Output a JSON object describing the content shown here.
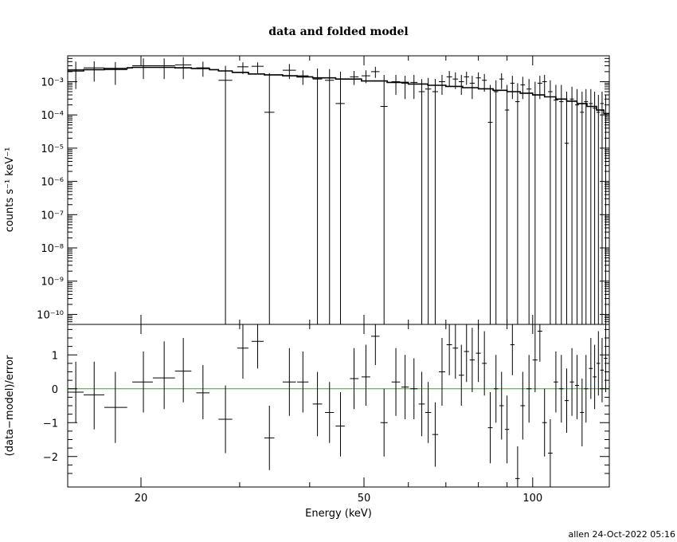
{
  "chart_data": {
    "type": "scatter",
    "title": "data and folded model",
    "footer": "allen 24-Oct-2022 05:16",
    "xlabel": "Energy (keV)",
    "xscale": "log",
    "xlim": [
      14.8,
      137
    ],
    "x_ticks": [
      "20",
      "50",
      "100"
    ],
    "colors": {
      "data": "#000000",
      "model": "#000000",
      "zero_line": "#00cc00"
    },
    "panels": [
      {
        "id": "spectrum",
        "ylabel": "counts s⁻¹ keV⁻¹",
        "yscale": "log",
        "ylim": [
          5e-11,
          0.006
        ],
        "y_ticks": [
          "10⁻¹⁰",
          "10⁻⁹",
          "10⁻⁸",
          "10⁻⁷",
          "10⁻⁶",
          "10⁻⁵",
          "10⁻⁴",
          "10⁻³"
        ]
      },
      {
        "id": "residuals",
        "ylabel": "(data−model)/error",
        "yscale": "linear",
        "ylim": [
          -2.9,
          1.9
        ],
        "y_ticks": [
          "−2",
          "−1",
          "0",
          "1"
        ]
      }
    ],
    "series": [
      {
        "name": "data",
        "points": [
          {
            "x": 15.3,
            "xlo": 14.8,
            "xhi": 15.8,
            "y": 0.0023,
            "ylo": 0.0006,
            "yhi": 0.004,
            "r": -0.1,
            "rlo": -1.0,
            "rhi": 0.8
          },
          {
            "x": 16.5,
            "xlo": 15.8,
            "xhi": 17.2,
            "y": 0.0026,
            "ylo": 0.001,
            "yhi": 0.0041,
            "r": -0.18,
            "rlo": -1.2,
            "rhi": 0.8
          },
          {
            "x": 18.0,
            "xlo": 17.2,
            "xhi": 18.9,
            "y": 0.0023,
            "ylo": 0.0008,
            "yhi": 0.0039,
            "r": -0.55,
            "rlo": -1.6,
            "rhi": 0.5
          },
          {
            "x": 20.2,
            "xlo": 19.3,
            "xhi": 21.0,
            "y": 0.003,
            "ylo": 0.0012,
            "yhi": 0.005,
            "r": 0.2,
            "rlo": -0.7,
            "rhi": 1.1
          },
          {
            "x": 22.0,
            "xlo": 21.0,
            "xhi": 23.0,
            "y": 0.003,
            "ylo": 0.0012,
            "yhi": 0.005,
            "r": 0.32,
            "rlo": -0.6,
            "rhi": 1.4
          },
          {
            "x": 23.8,
            "xlo": 23.0,
            "xhi": 24.6,
            "y": 0.0032,
            "ylo": 0.0012,
            "yhi": 0.0055,
            "r": 0.52,
            "rlo": -0.4,
            "rhi": 1.5
          },
          {
            "x": 25.8,
            "xlo": 25.1,
            "xhi": 26.5,
            "y": 0.0026,
            "ylo": 0.0014,
            "yhi": 0.004,
            "r": -0.12,
            "rlo": -0.9,
            "rhi": 0.7
          },
          {
            "x": 28.3,
            "xlo": 27.5,
            "xhi": 29.1,
            "y": 0.0011,
            "ylo": 1e-11,
            "yhi": 0.003,
            "r": -0.9,
            "rlo": -1.9,
            "rhi": 0.1
          },
          {
            "x": 30.4,
            "xlo": 29.7,
            "xhi": 31.1,
            "y": 0.0028,
            "ylo": 0.0017,
            "yhi": 0.0038,
            "r": 1.2,
            "rlo": 0.3,
            "rhi": 1.9
          },
          {
            "x": 32.3,
            "xlo": 31.5,
            "xhi": 33.1,
            "y": 0.0029,
            "ylo": 0.0018,
            "yhi": 0.0038,
            "r": 1.4,
            "rlo": 0.6,
            "rhi": 1.9
          },
          {
            "x": 33.9,
            "xlo": 33.2,
            "xhi": 34.6,
            "y": 0.00012,
            "ylo": 1e-11,
            "yhi": 0.0018,
            "r": -1.45,
            "rlo": -2.4,
            "rhi": -0.5
          },
          {
            "x": 36.8,
            "xlo": 35.8,
            "xhi": 37.8,
            "y": 0.0022,
            "ylo": 0.0012,
            "yhi": 0.0034,
            "r": 0.2,
            "rlo": -0.8,
            "rhi": 1.2
          },
          {
            "x": 38.9,
            "xlo": 38.0,
            "xhi": 39.8,
            "y": 0.0015,
            "ylo": 0.0008,
            "yhi": 0.0022,
            "r": 0.2,
            "rlo": -0.7,
            "rhi": 1.1
          },
          {
            "x": 41.3,
            "xlo": 40.5,
            "xhi": 42.1,
            "y": 0.0012,
            "ylo": 1e-11,
            "yhi": 0.0025,
            "r": -0.45,
            "rlo": -1.4,
            "rhi": 0.5
          },
          {
            "x": 43.4,
            "xlo": 42.6,
            "xhi": 44.2,
            "y": 0.0011,
            "ylo": 1e-11,
            "yhi": 0.0024,
            "r": -0.7,
            "rlo": -1.6,
            "rhi": 0.2
          },
          {
            "x": 45.4,
            "xlo": 44.5,
            "xhi": 46.2,
            "y": 0.00022,
            "ylo": 1e-11,
            "yhi": 0.002,
            "r": -1.1,
            "rlo": -2.0,
            "rhi": -0.1
          },
          {
            "x": 48.0,
            "xlo": 47.2,
            "xhi": 48.9,
            "y": 0.0014,
            "ylo": 0.0008,
            "yhi": 0.0021,
            "r": 0.3,
            "rlo": -0.6,
            "rhi": 1.2
          },
          {
            "x": 50.4,
            "xlo": 49.5,
            "xhi": 51.3,
            "y": 0.0015,
            "ylo": 0.0009,
            "yhi": 0.0022,
            "r": 0.35,
            "rlo": -0.5,
            "rhi": 1.3
          },
          {
            "x": 52.4,
            "xlo": 51.5,
            "xhi": 53.3,
            "y": 0.002,
            "ylo": 0.0013,
            "yhi": 0.0028,
            "r": 1.55,
            "rlo": 0.7,
            "rhi": 1.9
          },
          {
            "x": 54.3,
            "xlo": 53.5,
            "xhi": 55.1,
            "y": 0.00018,
            "ylo": 1e-11,
            "yhi": 0.0016,
            "r": -1.0,
            "rlo": -2.0,
            "rhi": 0.0
          },
          {
            "x": 57.0,
            "xlo": 56.0,
            "xhi": 58.0,
            "y": 0.001,
            "ylo": 0.0004,
            "yhi": 0.0016,
            "r": 0.2,
            "rlo": -0.8,
            "rhi": 1.2
          },
          {
            "x": 59.2,
            "xlo": 58.3,
            "xhi": 60.1,
            "y": 0.0009,
            "ylo": 0.0003,
            "yhi": 0.0015,
            "r": 0.05,
            "rlo": -0.9,
            "rhi": 1.0
          },
          {
            "x": 61.4,
            "xlo": 60.5,
            "xhi": 62.3,
            "y": 0.00095,
            "ylo": 0.0003,
            "yhi": 0.0016,
            "r": 0.0,
            "rlo": -0.9,
            "rhi": 0.9
          },
          {
            "x": 63.4,
            "xlo": 62.6,
            "xhi": 64.2,
            "y": 0.0005,
            "ylo": 1e-11,
            "yhi": 0.0012,
            "r": -0.45,
            "rlo": -1.4,
            "rhi": 0.5
          },
          {
            "x": 65.1,
            "xlo": 64.3,
            "xhi": 65.9,
            "y": 0.0006,
            "ylo": 1e-11,
            "yhi": 0.0013,
            "r": -0.7,
            "rlo": -1.6,
            "rhi": 0.2
          },
          {
            "x": 67.0,
            "xlo": 66.2,
            "xhi": 67.8,
            "y": 0.0005,
            "ylo": 1e-11,
            "yhi": 0.0012,
            "r": -1.35,
            "rlo": -2.3,
            "rhi": -0.4
          },
          {
            "x": 68.9,
            "xlo": 68.0,
            "xhi": 69.8,
            "y": 0.001,
            "ylo": 0.0004,
            "yhi": 0.0016,
            "r": 0.5,
            "rlo": -0.5,
            "rhi": 1.5
          },
          {
            "x": 71.0,
            "xlo": 70.2,
            "xhi": 71.8,
            "y": 0.0014,
            "ylo": 0.0007,
            "yhi": 0.0021,
            "r": 1.3,
            "rlo": 0.4,
            "rhi": 1.9
          },
          {
            "x": 72.8,
            "xlo": 72.0,
            "xhi": 73.6,
            "y": 0.0012,
            "ylo": 0.0006,
            "yhi": 0.0019,
            "r": 1.2,
            "rlo": 0.3,
            "rhi": 1.9
          },
          {
            "x": 74.6,
            "xlo": 73.8,
            "xhi": 75.4,
            "y": 0.001,
            "ylo": 0.0004,
            "yhi": 0.0016,
            "r": 0.4,
            "rlo": -0.5,
            "rhi": 1.3
          },
          {
            "x": 76.2,
            "xlo": 75.4,
            "xhi": 77.0,
            "y": 0.0014,
            "ylo": 0.0008,
            "yhi": 0.002,
            "r": 1.1,
            "rlo": 0.2,
            "rhi": 1.9
          },
          {
            "x": 78.0,
            "xlo": 77.2,
            "xhi": 78.8,
            "y": 0.0009,
            "ylo": 0.0003,
            "yhi": 0.0015,
            "r": 0.85,
            "rlo": -0.1,
            "rhi": 1.8
          },
          {
            "x": 80.0,
            "xlo": 79.2,
            "xhi": 80.8,
            "y": 0.0013,
            "ylo": 0.0007,
            "yhi": 0.0019,
            "r": 1.05,
            "rlo": 0.2,
            "rhi": 1.9
          },
          {
            "x": 82.0,
            "xlo": 81.2,
            "xhi": 82.8,
            "y": 0.0011,
            "ylo": 0.0005,
            "yhi": 0.0017,
            "r": 0.75,
            "rlo": -0.2,
            "rhi": 1.7
          },
          {
            "x": 84.0,
            "xlo": 83.2,
            "xhi": 84.8,
            "y": 6e-05,
            "ylo": 1e-11,
            "yhi": 0.0008,
            "r": -1.15,
            "rlo": -2.2,
            "rhi": -0.1
          },
          {
            "x": 86.0,
            "xlo": 85.2,
            "xhi": 86.8,
            "y": 0.0005,
            "ylo": 1e-11,
            "yhi": 0.0011,
            "r": 0.0,
            "rlo": -1.0,
            "rhi": 1.0
          },
          {
            "x": 88.0,
            "xlo": 87.2,
            "xhi": 88.8,
            "y": 0.0012,
            "ylo": 0.0006,
            "yhi": 0.0018,
            "r": -0.5,
            "rlo": -1.5,
            "rhi": 0.5
          },
          {
            "x": 90.0,
            "xlo": 89.2,
            "xhi": 90.8,
            "y": 0.00014,
            "ylo": 1e-11,
            "yhi": 0.0008,
            "r": -1.2,
            "rlo": -2.2,
            "rhi": -0.2
          },
          {
            "x": 92.0,
            "xlo": 91.2,
            "xhi": 92.8,
            "y": 0.0009,
            "ylo": 0.0003,
            "yhi": 0.0015,
            "r": 1.3,
            "rlo": 0.4,
            "rhi": 1.9
          },
          {
            "x": 94.0,
            "xlo": 93.1,
            "xhi": 94.8,
            "y": 0.00025,
            "ylo": 1e-11,
            "yhi": 0.0009,
            "r": -2.65,
            "rlo": -2.9,
            "rhi": -1.7
          },
          {
            "x": 96.0,
            "xlo": 95.1,
            "xhi": 96.9,
            "y": 0.0008,
            "ylo": 0.0003,
            "yhi": 0.0014,
            "r": -0.5,
            "rlo": -1.5,
            "rhi": 0.5
          },
          {
            "x": 98.5,
            "xlo": 97.5,
            "xhi": 99.5,
            "y": 0.0006,
            "ylo": 1e-11,
            "yhi": 0.0012,
            "r": 0.0,
            "rlo": -1.0,
            "rhi": 1.0
          },
          {
            "x": 101.0,
            "xlo": 100.0,
            "xhi": 102.0,
            "y": 0.0004,
            "ylo": 1e-11,
            "yhi": 0.001,
            "r": 0.85,
            "rlo": -0.1,
            "rhi": 1.9
          },
          {
            "x": 103.0,
            "xlo": 102.0,
            "xhi": 104.0,
            "y": 0.0009,
            "ylo": 0.0003,
            "yhi": 0.0015,
            "r": 1.7,
            "rlo": 0.8,
            "rhi": 1.9
          },
          {
            "x": 105.0,
            "xlo": 104.0,
            "xhi": 106.0,
            "y": 0.001,
            "ylo": 0.0004,
            "yhi": 0.0016,
            "r": -1.0,
            "rlo": -2.0,
            "rhi": 0.0
          },
          {
            "x": 107.5,
            "xlo": 106.5,
            "xhi": 108.5,
            "y": 0.0005,
            "ylo": 1e-11,
            "yhi": 0.0011,
            "r": -1.9,
            "rlo": -2.9,
            "rhi": -0.9
          },
          {
            "x": 110.0,
            "xlo": 109.0,
            "xhi": 111.0,
            "y": 0.00028,
            "ylo": 1e-11,
            "yhi": 0.0008,
            "r": 0.2,
            "rlo": -0.7,
            "rhi": 1.1
          },
          {
            "x": 112.5,
            "xlo": 111.5,
            "xhi": 113.5,
            "y": 0.00025,
            "ylo": 1e-11,
            "yhi": 0.0008,
            "r": 0.0,
            "rlo": -1.0,
            "rhi": 1.0
          },
          {
            "x": 115.0,
            "xlo": 114.0,
            "xhi": 116.0,
            "y": 1.4e-05,
            "ylo": 1e-11,
            "yhi": 0.0005,
            "r": -0.35,
            "rlo": -1.3,
            "rhi": 0.6
          },
          {
            "x": 117.5,
            "xlo": 116.5,
            "xhi": 118.5,
            "y": 0.0003,
            "ylo": 1e-11,
            "yhi": 0.0007,
            "r": 0.2,
            "rlo": -0.8,
            "rhi": 1.2
          },
          {
            "x": 120.0,
            "xlo": 119.0,
            "xhi": 121.0,
            "y": 0.0002,
            "ylo": 1e-11,
            "yhi": 0.0006,
            "r": 0.1,
            "rlo": -0.9,
            "rhi": 1.0
          },
          {
            "x": 122.5,
            "xlo": 121.5,
            "xhi": 123.5,
            "y": 0.00012,
            "ylo": 1e-11,
            "yhi": 0.0005,
            "r": -0.7,
            "rlo": -1.7,
            "rhi": 0.3
          },
          {
            "x": 124.5,
            "xlo": 123.5,
            "xhi": 125.5,
            "y": 0.00025,
            "ylo": 1e-11,
            "yhi": 0.0006,
            "r": 0.0,
            "rlo": -1.0,
            "rhi": 1.0
          },
          {
            "x": 127.0,
            "xlo": 126.0,
            "xhi": 128.0,
            "y": 0.00022,
            "ylo": 1e-11,
            "yhi": 0.0006,
            "r": 0.6,
            "rlo": -0.3,
            "rhi": 1.5
          },
          {
            "x": 129.0,
            "xlo": 128.0,
            "xhi": 130.0,
            "y": 0.00016,
            "ylo": 1e-11,
            "yhi": 0.0005,
            "r": 0.35,
            "rlo": -0.6,
            "rhi": 1.3
          },
          {
            "x": 131.0,
            "xlo": 130.0,
            "xhi": 132.0,
            "y": 0.00012,
            "ylo": 1e-11,
            "yhi": 0.0004,
            "r": 0.75,
            "rlo": -0.2,
            "rhi": 1.7
          },
          {
            "x": 133.0,
            "xlo": 132.0,
            "xhi": 134.0,
            "y": 0.00022,
            "ylo": 1e-11,
            "yhi": 0.0005,
            "r": 0.55,
            "rlo": -0.4,
            "rhi": 1.5
          },
          {
            "x": 135.0,
            "xlo": 134.0,
            "xhi": 136.0,
            "y": 0.0001,
            "ylo": 1e-11,
            "yhi": 0.0004,
            "r": 0.9,
            "rlo": -0.1,
            "rhi": 1.9
          }
        ]
      },
      {
        "name": "model",
        "style": "step",
        "x": [
          14.8,
          15.8,
          17.2,
          18.9,
          19.3,
          21.0,
          23.0,
          24.6,
          26.5,
          27.5,
          29.1,
          31.1,
          33.2,
          35.8,
          38.0,
          40.5,
          44.5,
          49.5,
          55.0,
          60.0,
          65.0,
          70.0,
          75.0,
          80.0,
          85.0,
          90.0,
          95.0,
          100.0,
          105.0,
          110.0,
          115.0,
          120.0,
          125.0,
          130.0,
          134.0,
          137.0
        ],
        "y": [
          0.0021,
          0.0023,
          0.0025,
          0.0026,
          0.0027,
          0.0027,
          0.0026,
          0.0025,
          0.0023,
          0.0021,
          0.0019,
          0.0017,
          0.0016,
          0.0015,
          0.0014,
          0.0013,
          0.0012,
          0.00105,
          0.00095,
          0.00085,
          0.00078,
          0.00072,
          0.00066,
          0.00061,
          0.00055,
          0.0005,
          0.00045,
          0.0004,
          0.00035,
          0.0003,
          0.00026,
          0.00022,
          0.00018,
          0.00014,
          0.00011,
          9e-05
        ]
      }
    ]
  }
}
